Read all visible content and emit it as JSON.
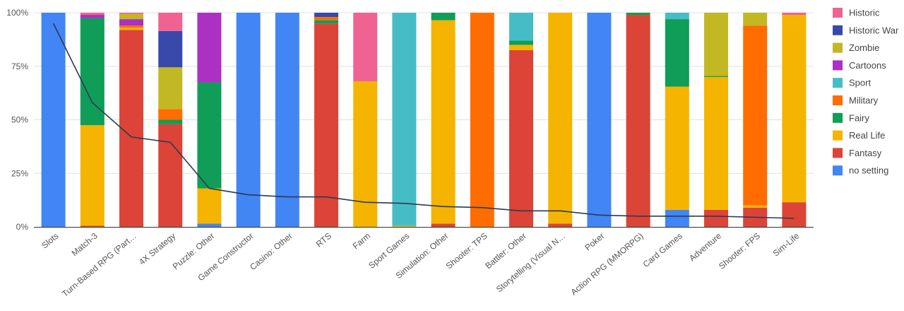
{
  "chart_data": {
    "type": "bar",
    "stacked": true,
    "title": "",
    "xlabel": "",
    "ylabel": "",
    "ylim": [
      0,
      100
    ],
    "y_ticks": [
      "0%",
      "25%",
      "50%",
      "75%",
      "100%"
    ],
    "legend_position": "right",
    "categories": [
      "Slots",
      "Match-3",
      "Turn-Based RPG (Part…",
      "4X Strategy",
      "Puzzle: Other",
      "Game Constructor",
      "Casino: Other",
      "RTS",
      "Farm",
      "Sport Games",
      "Simulation: Other",
      "Shooter: TPS",
      "Battler: Other",
      "Storytelling (Visual N…",
      "Poker",
      "Action RPG (MMORPG)",
      "Card Games",
      "Adventure",
      "Shooter: FPS",
      "Sim-Life"
    ],
    "series": [
      {
        "name": "no setting",
        "color": "#4285F4",
        "values": [
          100,
          0,
          0,
          0,
          1.5,
          100,
          100,
          0,
          0,
          0,
          0,
          0,
          0,
          0,
          100,
          0,
          8,
          0,
          0,
          0
        ]
      },
      {
        "name": "Fantasy",
        "color": "#DB4437",
        "values": [
          0,
          0.5,
          92,
          48,
          0,
          0,
          0,
          95,
          0,
          0,
          1.5,
          0,
          82.5,
          1.5,
          0,
          99,
          0,
          8,
          9,
          11.5
        ]
      },
      {
        "name": "Real Life",
        "color": "#F4B400",
        "values": [
          0,
          47,
          1,
          0,
          16.5,
          0,
          0,
          0,
          68,
          0.5,
          95,
          0,
          2.5,
          98.5,
          0,
          0,
          57.5,
          62,
          1,
          87.5
        ]
      },
      {
        "name": "Fairy",
        "color": "#0F9D58",
        "values": [
          0,
          50,
          0,
          2,
          49.5,
          0,
          0,
          1.5,
          0,
          0,
          3.5,
          0,
          2,
          0,
          0,
          1,
          31.5,
          0.5,
          0,
          0
        ]
      },
      {
        "name": "Military",
        "color": "#FF6D00",
        "values": [
          0,
          0,
          1,
          5,
          0,
          0,
          0,
          1.5,
          0,
          0,
          0,
          100,
          0,
          0,
          0,
          0,
          0,
          0,
          84,
          0
        ]
      },
      {
        "name": "Sport",
        "color": "#46BDC6",
        "values": [
          0,
          0,
          0,
          0,
          0,
          0,
          0,
          0,
          0,
          99.5,
          0,
          0,
          13,
          0,
          0,
          0,
          3,
          0,
          0,
          0
        ]
      },
      {
        "name": "Cartoons",
        "color": "#AB30C4",
        "values": [
          0,
          1.5,
          3,
          0,
          32.5,
          0,
          0,
          0,
          0,
          0,
          0,
          0,
          0,
          0,
          0,
          0,
          0,
          0,
          0,
          0
        ]
      },
      {
        "name": "Zombie",
        "color": "#C2B823",
        "values": [
          0,
          0,
          2.5,
          19.5,
          0,
          0,
          0,
          0,
          0,
          0,
          0,
          0,
          0,
          0,
          0,
          0,
          0,
          29.5,
          6,
          0
        ]
      },
      {
        "name": "Historic War",
        "color": "#3949AB",
        "values": [
          0,
          0,
          0,
          17,
          0,
          0,
          0,
          2,
          0,
          0,
          0,
          0,
          0,
          0,
          0,
          0,
          0,
          0,
          0,
          0
        ]
      },
      {
        "name": "Historic",
        "color": "#F06292",
        "values": [
          0,
          1,
          0.5,
          8.5,
          0,
          0,
          0,
          0,
          32,
          0,
          0,
          0,
          0,
          0,
          0,
          0,
          0,
          0,
          0,
          1
        ]
      }
    ],
    "line": {
      "name": "",
      "color": "#2B3A55",
      "values": [
        95,
        58,
        42,
        39.5,
        18,
        15,
        14,
        14,
        11.5,
        11,
        9.5,
        9,
        7.5,
        7.5,
        5.5,
        5,
        5,
        5,
        4.5,
        4
      ]
    },
    "legend": [
      "Historic",
      "Historic War",
      "Zombie",
      "Cartoons",
      "Sport",
      "Military",
      "Fairy",
      "Real Life",
      "Fantasy",
      "no setting"
    ]
  }
}
